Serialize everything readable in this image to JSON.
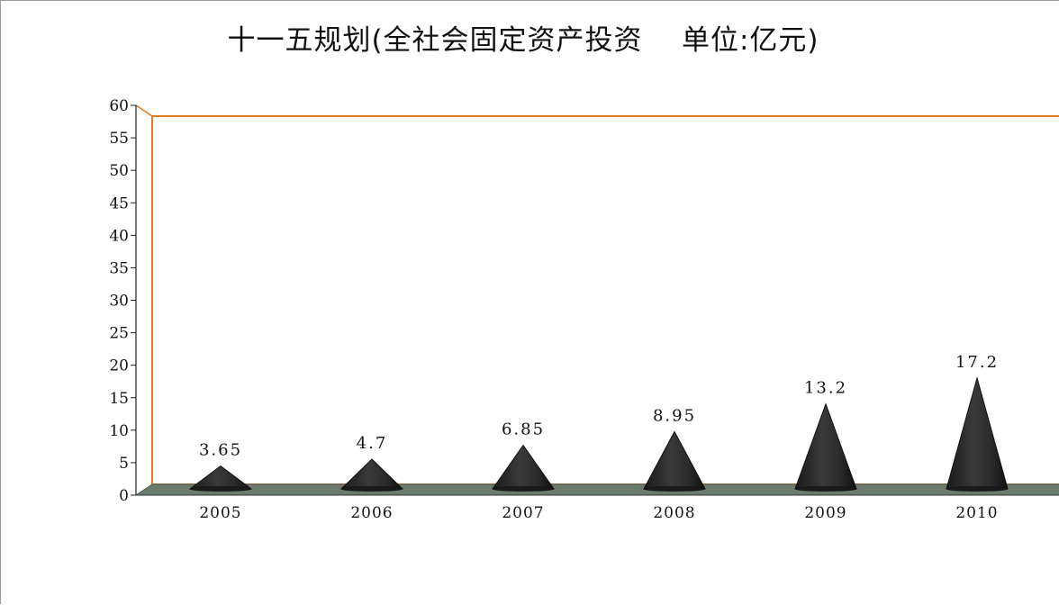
{
  "chart_data": {
    "type": "bar",
    "title": "十一五规划(全社会固定资产投资    单位:亿元)",
    "categories": [
      "2005",
      "2006",
      "2007",
      "2008",
      "2009",
      "2010"
    ],
    "values": [
      3.65,
      4.7,
      6.85,
      8.95,
      13.2,
      17.2
    ],
    "data_labels": [
      "3.65",
      "4.7",
      "6.85",
      "8.95",
      "13.2",
      "17.2"
    ],
    "mark_shape": "cone",
    "ylim": [
      0,
      60
    ],
    "yticks": [
      "0",
      "5",
      "10",
      "15",
      "20",
      "25",
      "30",
      "35",
      "40",
      "45",
      "50",
      "55",
      "60"
    ],
    "xlabel": "",
    "ylabel": "",
    "grid": false,
    "legend": "none",
    "colors": {
      "mark": "#2b2b2b",
      "wall_border": "#e07a1f",
      "floor": "#6b7b6e"
    }
  }
}
